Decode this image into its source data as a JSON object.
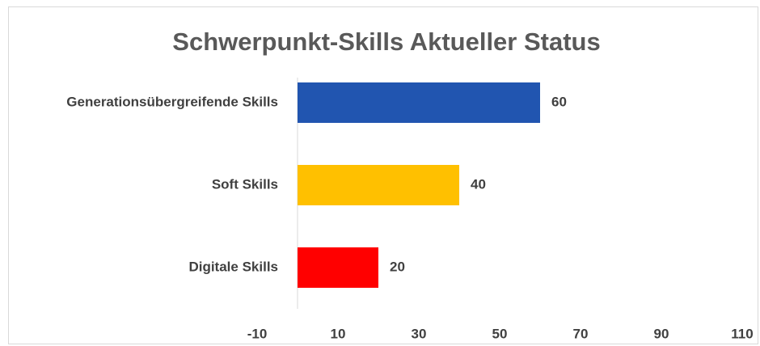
{
  "chart_data": {
    "type": "barh",
    "title": "Schwerpunkt-Skills Aktueller Status",
    "categories": [
      "Generationsübergreifende Skills",
      "Soft Skills",
      "Digitale Skills"
    ],
    "values": [
      60,
      40,
      20
    ],
    "colors": [
      "#2155b0",
      "#ffc000",
      "#ff0000"
    ],
    "xlim": [
      -10,
      110
    ],
    "xticks": [
      -10,
      10,
      30,
      50,
      70,
      90,
      110
    ],
    "grid": false
  }
}
